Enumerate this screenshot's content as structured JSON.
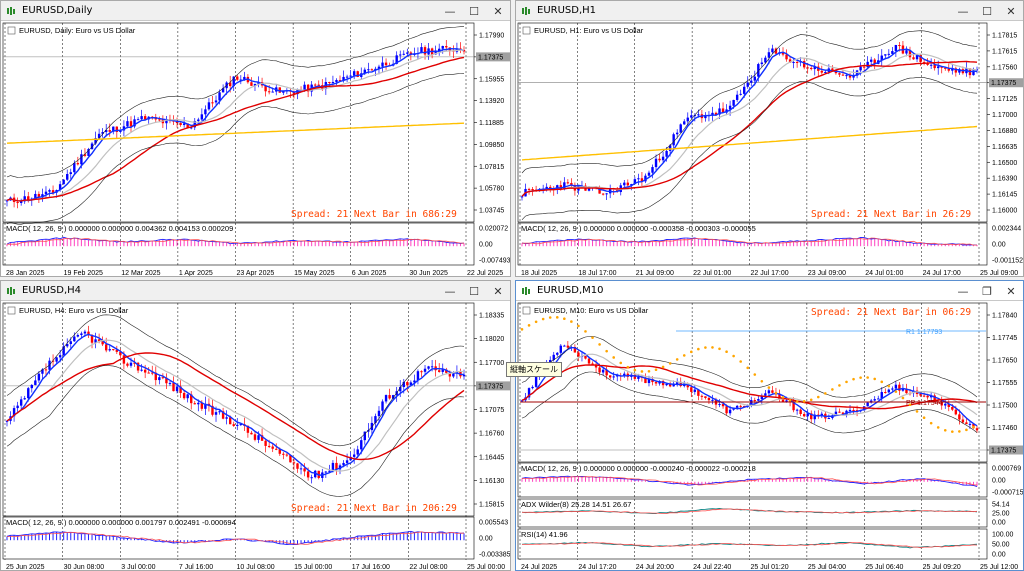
{
  "windows": [
    {
      "id": "daily",
      "title": "EURUSD,Daily",
      "symbol_label": "EURUSD, Daily:  Euro vs US Dollar",
      "prices": [
        "1.17990",
        "1.17375",
        "1.15955",
        "1.13920",
        "1.11885",
        "1.09850",
        "1.07815",
        "1.05780",
        "1.03745"
      ],
      "current_price": "1.17375",
      "macd_label": "MACD( 12, 26, 9 ) 0.000000 0.000000 0.004362 0.004153 0.000209",
      "macd_scale": [
        "0.020072",
        "0.00",
        "-0.007493"
      ],
      "dates": [
        "28 Jan 2025",
        "19 Feb 2025",
        "12 Mar 2025",
        "1 Apr 2025",
        "23 Apr 2025",
        "15 May 2025",
        "6 Jun 2025",
        "30 Jun 2025",
        "22 Jul 2025"
      ],
      "spread": "Spread: 21  Next Bar in 686:29"
    },
    {
      "id": "h1",
      "title": "EURUSD,H1",
      "symbol_label": "EURUSD, H1:  Euro vs US Dollar",
      "prices": [
        "1.17815",
        "1.17615",
        "1.17560",
        "1.17375",
        "1.17125",
        "1.17000",
        "1.16880",
        "1.16635",
        "1.16500",
        "1.16390",
        "1.16145",
        "1.16000"
      ],
      "current_price": "1.17375",
      "macd_label": "MACD( 12, 26, 9 ) 0.000000 0.000000 -0.000358 -0.000303 -0.000055",
      "macd_scale": [
        "0.002344",
        "0.00",
        "-0.001152"
      ],
      "dates": [
        "18 Jul 2025",
        "18 Jul 17:00",
        "21 Jul 09:00",
        "22 Jul 01:00",
        "22 Jul 17:00",
        "23 Jul 09:00",
        "24 Jul 01:00",
        "24 Jul 17:00",
        "25 Jul 09:00"
      ],
      "spread": "Spread: 21  Next Bar in 26:29"
    },
    {
      "id": "h4",
      "title": "EURUSD,H4",
      "symbol_label": "EURUSD, H4:  Euro vs US Dollar",
      "prices": [
        "1.18335",
        "1.18020",
        "1.17700",
        "1.17375",
        "1.17075",
        "1.16760",
        "1.16445",
        "1.16130",
        "1.15815"
      ],
      "current_price": "1.17375",
      "macd_label": "MACD( 12, 26, 9 ) 0.000000 0.000000 0.001797 0.002491 -0.000694",
      "macd_scale": [
        "0.005543",
        "0.00",
        "-0.003385"
      ],
      "dates": [
        "25 Jun 2025",
        "30 Jun 08:00",
        "3 Jul 00:00",
        "7 Jul 16:00",
        "10 Jul 08:00",
        "15 Jul 00:00",
        "17 Jul 16:00",
        "22 Jul 08:00",
        "25 Jul 00:00"
      ],
      "spread": "Spread: 21  Next Bar in 206:29"
    },
    {
      "id": "m10",
      "title": "EURUSD,M10",
      "symbol_label": "EURUSD, M10:  Euro vs US Dollar",
      "prices": [
        "1.17840",
        "1.17745",
        "1.17650",
        "1.17555",
        "1.17500",
        "1.17460",
        "1.17375"
      ],
      "current_price": "1.17375",
      "macd_label": "MACD( 12, 26, 9 ) 0.000000 0.000000 -0.000240 -0.000022 -0.000218",
      "macd_scale": [
        "0.000769",
        "0.00",
        "-0.000715"
      ],
      "adx_label": "ADX Wilder(8) 25.28 14.51 26.67",
      "adx_scale": [
        "54.14",
        "25.00",
        "0.00"
      ],
      "rsi_label": "RSI(14) 41.96",
      "rsi_scale": [
        "100.00",
        "50.00",
        "0.00"
      ],
      "dates": [
        "24 Jul 2025",
        "24 Jul 17:20",
        "24 Jul 20:00",
        "24 Jul 22:40",
        "25 Jul 01:20",
        "25 Jul 04:00",
        "25 Jul 06:40",
        "25 Jul 09:20",
        "25 Jul 12:00"
      ],
      "spread": "Spread: 21  Next Bar in 06:29",
      "r1_label": "R1 1.17793",
      "pp_label": "PP 1.17544"
    }
  ],
  "tooltip": "縦軸スケール",
  "colors": {
    "bull": "#0000ff",
    "bear": "#ff0000",
    "spread": "#ff4500",
    "ma_red": "#e00000",
    "ma_gold": "#ffc000"
  }
}
